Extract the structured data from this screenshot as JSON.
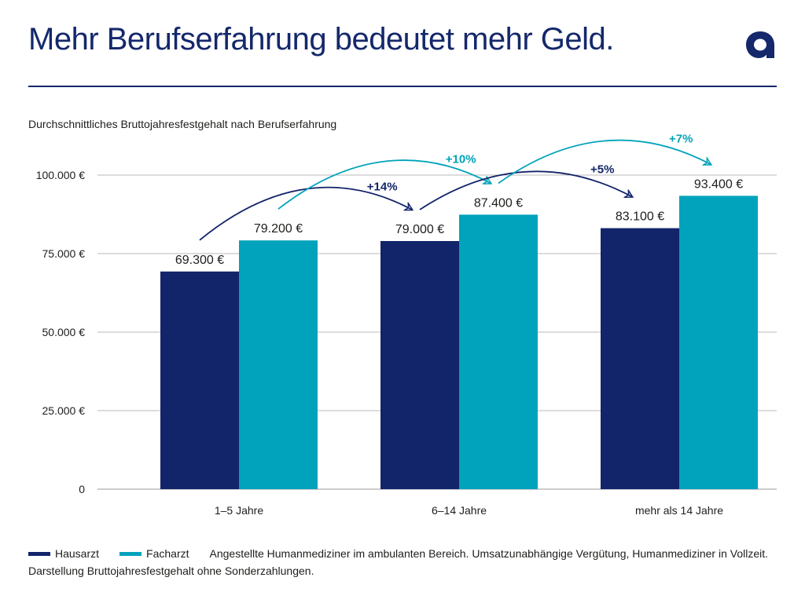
{
  "title": "Mehr Berufserfahrung bedeutet mehr Geld.",
  "subtitle": "Durchschnittliches Bruttojahresfestgehalt nach Berufserfahrung",
  "logo": {
    "icon": "a-logo-icon",
    "glyph": "a"
  },
  "colors": {
    "brand": "#14286b",
    "hausarzt": "#12246a",
    "facharzt": "#00a3bb",
    "grid": "#b8b8b8"
  },
  "legend": [
    {
      "label": "Hausarzt",
      "color": "#12246a"
    },
    {
      "label": "Facharzt",
      "color": "#00a3bb"
    }
  ],
  "footnote": "Angestellte Humanmediziner im ambulanten Bereich. Umsatzunabhängige Vergütung, Humanmediziner in Vollzeit. Darstellung Bruttojahresfestgehalt ohne Sonderzahlungen.",
  "chart_data": {
    "type": "bar",
    "title": "Durchschnittliches Bruttojahresfestgehalt nach Berufserfahrung",
    "categories": [
      "1–5 Jahre",
      "6–14 Jahre",
      "mehr als 14 Jahre"
    ],
    "series": [
      {
        "name": "Hausarzt",
        "values": [
          69300,
          79000,
          83100
        ],
        "labels": [
          "69.300 €",
          "79.000 €",
          "83.100 €"
        ]
      },
      {
        "name": "Facharzt",
        "values": [
          79200,
          87400,
          93400
        ],
        "labels": [
          "79.200 €",
          "87.400 €",
          "93.400 €"
        ]
      }
    ],
    "ylim": [
      0,
      100000
    ],
    "yticks": [
      {
        "value": 0,
        "label": "0"
      },
      {
        "value": 25000,
        "label": "25.000 €"
      },
      {
        "value": 50000,
        "label": "50.000 €"
      },
      {
        "value": 75000,
        "label": "75.000 €"
      },
      {
        "value": 100000,
        "label": "100.000 €"
      }
    ],
    "grid": true,
    "legend_position": "bottom-left",
    "annotations": [
      {
        "series": 0,
        "from": 0,
        "to": 1,
        "label": "+14%"
      },
      {
        "series": 1,
        "from": 0,
        "to": 1,
        "label": "+10%"
      },
      {
        "series": 0,
        "from": 1,
        "to": 2,
        "label": "+5%"
      },
      {
        "series": 1,
        "from": 1,
        "to": 2,
        "label": "+7%"
      }
    ]
  }
}
